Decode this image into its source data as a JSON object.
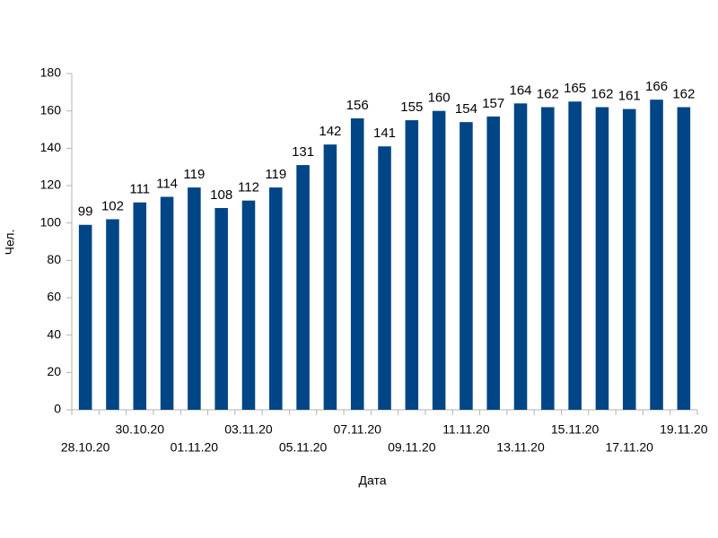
{
  "chart_data": {
    "type": "bar",
    "x_label": "Дата",
    "y_label": "Чел.",
    "categories": [
      "28.10.20",
      null,
      "30.10.20",
      null,
      "01.11.20",
      null,
      "03.11.20",
      null,
      "05.11.20",
      null,
      "07.11.20",
      null,
      "09.11.20",
      null,
      "11.11.20",
      null,
      "13.11.20",
      null,
      "15.11.20",
      null,
      "17.11.20",
      null,
      "19.11.20"
    ],
    "values": [
      99,
      102,
      111,
      114,
      119,
      108,
      112,
      119,
      131,
      142,
      156,
      141,
      155,
      160,
      154,
      157,
      164,
      162,
      165,
      162,
      161,
      166,
      162
    ],
    "color": "#004586",
    "ylim": [
      0,
      180
    ],
    "yticks": [
      0,
      20,
      40,
      60,
      80,
      100,
      120,
      140,
      160,
      180
    ],
    "grid": false,
    "value_labels_shown": true
  }
}
